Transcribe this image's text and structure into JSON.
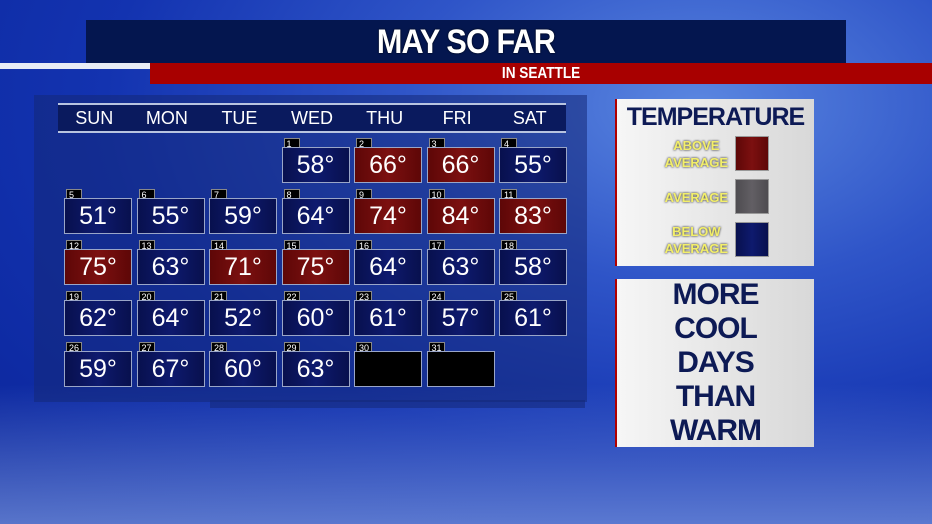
{
  "title": "MAY SO FAR",
  "subtitle": "IN SEATTLE",
  "weekdays": [
    "SUN",
    "MON",
    "TUE",
    "WED",
    "THU",
    "FRI",
    "SAT"
  ],
  "days": [
    {
      "day": "1",
      "temp": "58°",
      "status": "below"
    },
    {
      "day": "2",
      "temp": "66°",
      "status": "above"
    },
    {
      "day": "3",
      "temp": "66°",
      "status": "above"
    },
    {
      "day": "4",
      "temp": "55°",
      "status": "below"
    },
    {
      "day": "5",
      "temp": "51°",
      "status": "below"
    },
    {
      "day": "6",
      "temp": "55°",
      "status": "below"
    },
    {
      "day": "7",
      "temp": "59°",
      "status": "below"
    },
    {
      "day": "8",
      "temp": "64°",
      "status": "below"
    },
    {
      "day": "9",
      "temp": "74°",
      "status": "above"
    },
    {
      "day": "10",
      "temp": "84°",
      "status": "above"
    },
    {
      "day": "11",
      "temp": "83°",
      "status": "above"
    },
    {
      "day": "12",
      "temp": "75°",
      "status": "above"
    },
    {
      "day": "13",
      "temp": "63°",
      "status": "below"
    },
    {
      "day": "14",
      "temp": "71°",
      "status": "above"
    },
    {
      "day": "15",
      "temp": "75°",
      "status": "above"
    },
    {
      "day": "16",
      "temp": "64°",
      "status": "below"
    },
    {
      "day": "17",
      "temp": "63°",
      "status": "below"
    },
    {
      "day": "18",
      "temp": "58°",
      "status": "below"
    },
    {
      "day": "19",
      "temp": "62°",
      "status": "below"
    },
    {
      "day": "20",
      "temp": "64°",
      "status": "below"
    },
    {
      "day": "21",
      "temp": "52°",
      "status": "below"
    },
    {
      "day": "22",
      "temp": "60°",
      "status": "below"
    },
    {
      "day": "23",
      "temp": "61°",
      "status": "below"
    },
    {
      "day": "24",
      "temp": "57°",
      "status": "below"
    },
    {
      "day": "25",
      "temp": "61°",
      "status": "below"
    },
    {
      "day": "26",
      "temp": "59°",
      "status": "below"
    },
    {
      "day": "27",
      "temp": "67°",
      "status": "below"
    },
    {
      "day": "28",
      "temp": "60°",
      "status": "below"
    },
    {
      "day": "29",
      "temp": "63°",
      "status": "below"
    },
    {
      "day": "30",
      "temp": "",
      "status": "none"
    },
    {
      "day": "31",
      "temp": "",
      "status": "none"
    }
  ],
  "legend": {
    "title": "TEMPERATURE",
    "items": [
      {
        "label_line1": "ABOVE",
        "label_line2": "AVERAGE",
        "color": "#6e0b0b"
      },
      {
        "label_line1": "AVERAGE",
        "label_line2": "",
        "color": "#5a585c"
      },
      {
        "label_line1": "BELOW",
        "label_line2": "AVERAGE",
        "color": "#0a125a"
      }
    ]
  },
  "message": "MORE COOL DAYS THAN WARM"
}
